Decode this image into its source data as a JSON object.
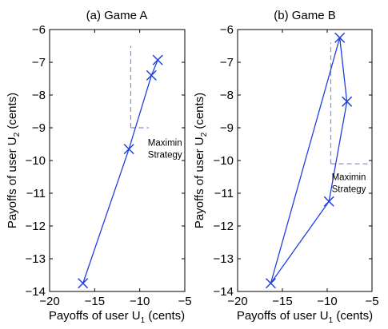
{
  "chart_data": [
    {
      "type": "line",
      "title": "(a) Game A",
      "xlabel": "Payoffs of user U",
      "xlabel_sub": "1",
      "xlabel_suffix": " (cents)",
      "ylabel": "Payoffs of user U",
      "ylabel_sub": "2",
      "ylabel_suffix": " (cents)",
      "xlim": [
        -20,
        -5
      ],
      "ylim": [
        -14,
        -6
      ],
      "xticks": [
        -20,
        -15,
        -10,
        -5
      ],
      "yticks": [
        -14,
        -13,
        -12,
        -11,
        -10,
        -9,
        -8,
        -7,
        -6
      ],
      "grid": false,
      "line_color": "#1f3fe0",
      "series": [
        {
          "x": [
            -16.3,
            -11.2,
            -8.7,
            -8.0
          ],
          "y": [
            -13.75,
            -9.65,
            -7.4,
            -6.93
          ],
          "marker": "x"
        }
      ],
      "maximin": {
        "x": -11.0,
        "y": -9.0,
        "x_end": -9.0,
        "y_end": -6.5
      },
      "annotation": [
        "Maximin",
        "Strategy"
      ],
      "annotation_anchor": {
        "x": -9.1,
        "y": -9.3
      }
    },
    {
      "type": "line",
      "title": "(b) Game B",
      "xlabel": "Payoffs of user U",
      "xlabel_sub": "1",
      "xlabel_suffix": " (cents)",
      "ylabel": "Payoffs of user U",
      "ylabel_sub": "2",
      "ylabel_suffix": " (cents)",
      "xlim": [
        -20,
        -5
      ],
      "ylim": [
        -14,
        -6
      ],
      "xticks": [
        -20,
        -15,
        -10,
        -5
      ],
      "yticks": [
        -14,
        -13,
        -12,
        -11,
        -10,
        -9,
        -8,
        -7,
        -6
      ],
      "grid": false,
      "line_color": "#1f3fe0",
      "series": [
        {
          "x": [
            -16.3,
            -8.6,
            -7.8,
            -9.8,
            -16.3
          ],
          "y": [
            -13.75,
            -6.25,
            -8.2,
            -11.25,
            -13.75
          ],
          "marker": "x",
          "marker_points": 4
        }
      ],
      "maximin": {
        "x": -9.6,
        "y": -10.1,
        "x_end": -5.0,
        "y_end": -6.4
      },
      "annotation": [
        "Maximin",
        "Strategy"
      ],
      "annotation_anchor": {
        "x": -9.5,
        "y": -10.35
      }
    }
  ]
}
